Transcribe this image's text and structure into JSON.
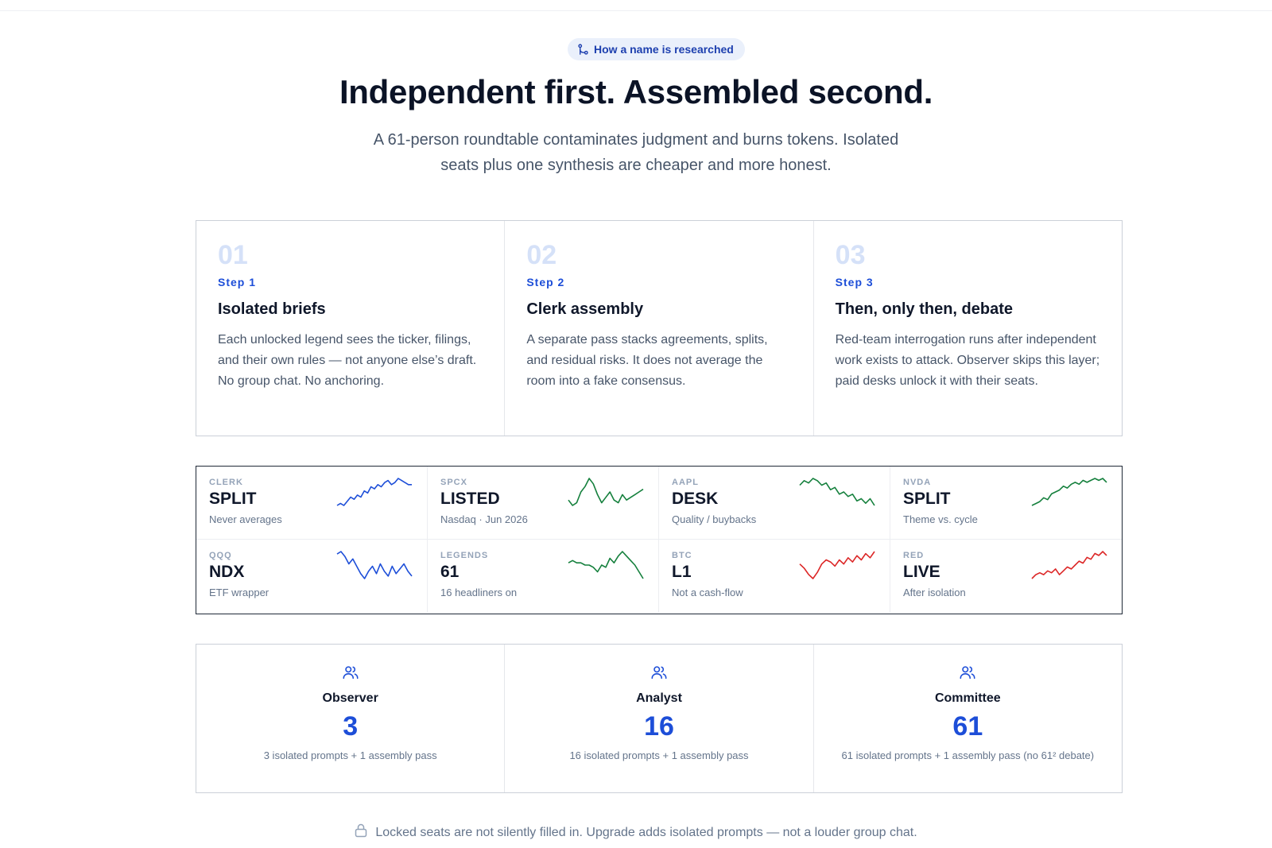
{
  "badge": {
    "icon": "git-branch-icon",
    "label": "How a name is researched"
  },
  "hero": {
    "title": "Independent first. Assembled second.",
    "subtitle": "A 61-person roundtable contaminates judgment and burns tokens. Isolated seats plus one synthesis are cheaper and more honest."
  },
  "steps": [
    {
      "number": "01",
      "label": "Step 1",
      "title": "Isolated briefs",
      "description": "Each unlocked legend sees the ticker, filings, and their own rules — not anyone else’s draft. No group chat. No anchoring."
    },
    {
      "number": "02",
      "label": "Step 2",
      "title": "Clerk assembly",
      "description": "A separate pass stacks agreements, splits, and residual risks. It does not average the room into a fake consensus."
    },
    {
      "number": "03",
      "label": "Step 3",
      "title": "Then, only then, debate",
      "description": "Red-team interrogation runs after independent work exists to attack. Observer skips this layer; paid desks unlock it with their seats."
    }
  ],
  "tickers": [
    {
      "symbol": "CLERK",
      "value": "SPLIT",
      "note": "Never averages",
      "color": "#1d4ed8",
      "trend": [
        2,
        3,
        2,
        4,
        6,
        5,
        7,
        6,
        9,
        8,
        11,
        10,
        12,
        11,
        13,
        14,
        12,
        13,
        15,
        14,
        13,
        12,
        12
      ]
    },
    {
      "symbol": "SPCX",
      "value": "LISTED",
      "note": "Nasdaq · Jun 2026",
      "color": "#15803d",
      "trend": [
        6,
        4,
        5,
        9,
        11,
        14,
        12,
        8,
        5,
        7,
        9,
        6,
        5,
        8,
        6,
        7,
        8,
        9,
        10
      ]
    },
    {
      "symbol": "AAPL",
      "value": "DESK",
      "note": "Quality / buybacks",
      "color": "#15803d",
      "trend": [
        12,
        14,
        13,
        15,
        14,
        12,
        13,
        10,
        11,
        8,
        9,
        7,
        8,
        5,
        6,
        4,
        6,
        3
      ]
    },
    {
      "symbol": "NVDA",
      "value": "SPLIT",
      "note": "Theme vs. cycle",
      "color": "#15803d",
      "trend": [
        2,
        3,
        4,
        6,
        5,
        8,
        9,
        10,
        12,
        11,
        13,
        14,
        13,
        15,
        14,
        15,
        16,
        15,
        16,
        14
      ]
    },
    {
      "symbol": "QQQ",
      "value": "NDX",
      "note": "ETF wrapper",
      "color": "#1d4ed8",
      "trend": [
        14,
        15,
        13,
        10,
        12,
        9,
        6,
        4,
        7,
        9,
        6,
        10,
        7,
        5,
        9,
        6,
        8,
        10,
        7,
        5
      ]
    },
    {
      "symbol": "LEGENDS",
      "value": "61",
      "note": "16 headliners on",
      "color": "#15803d",
      "trend": [
        10,
        11,
        10,
        10,
        9,
        9,
        8,
        6,
        9,
        8,
        12,
        10,
        13,
        15,
        13,
        11,
        9,
        6,
        3
      ]
    },
    {
      "symbol": "BTC",
      "value": "L1",
      "note": "Not a cash-flow",
      "color": "#dc2626",
      "trend": [
        10,
        8,
        5,
        3,
        6,
        10,
        12,
        11,
        9,
        12,
        10,
        13,
        11,
        14,
        12,
        15,
        13,
        16
      ]
    },
    {
      "symbol": "RED",
      "value": "LIVE",
      "note": "After isolation",
      "color": "#dc2626",
      "trend": [
        2,
        4,
        5,
        4,
        6,
        5,
        7,
        4,
        6,
        8,
        7,
        9,
        11,
        10,
        13,
        12,
        15,
        14,
        16,
        14
      ]
    }
  ],
  "seats": [
    {
      "icon": "users-icon",
      "name": "Observer",
      "count": "3",
      "description": "3 isolated prompts + 1 assembly pass"
    },
    {
      "icon": "users-icon",
      "name": "Analyst",
      "count": "16",
      "description": "16 isolated prompts + 1 assembly pass"
    },
    {
      "icon": "users-icon",
      "name": "Committee",
      "count": "61",
      "description": "61 isolated prompts + 1 assembly pass (no 61² debate)"
    }
  ],
  "footnote": {
    "icon": "lock-icon",
    "text": "Locked seats are not silently filled in. Upgrade adds isolated prompts — not a louder group chat."
  }
}
